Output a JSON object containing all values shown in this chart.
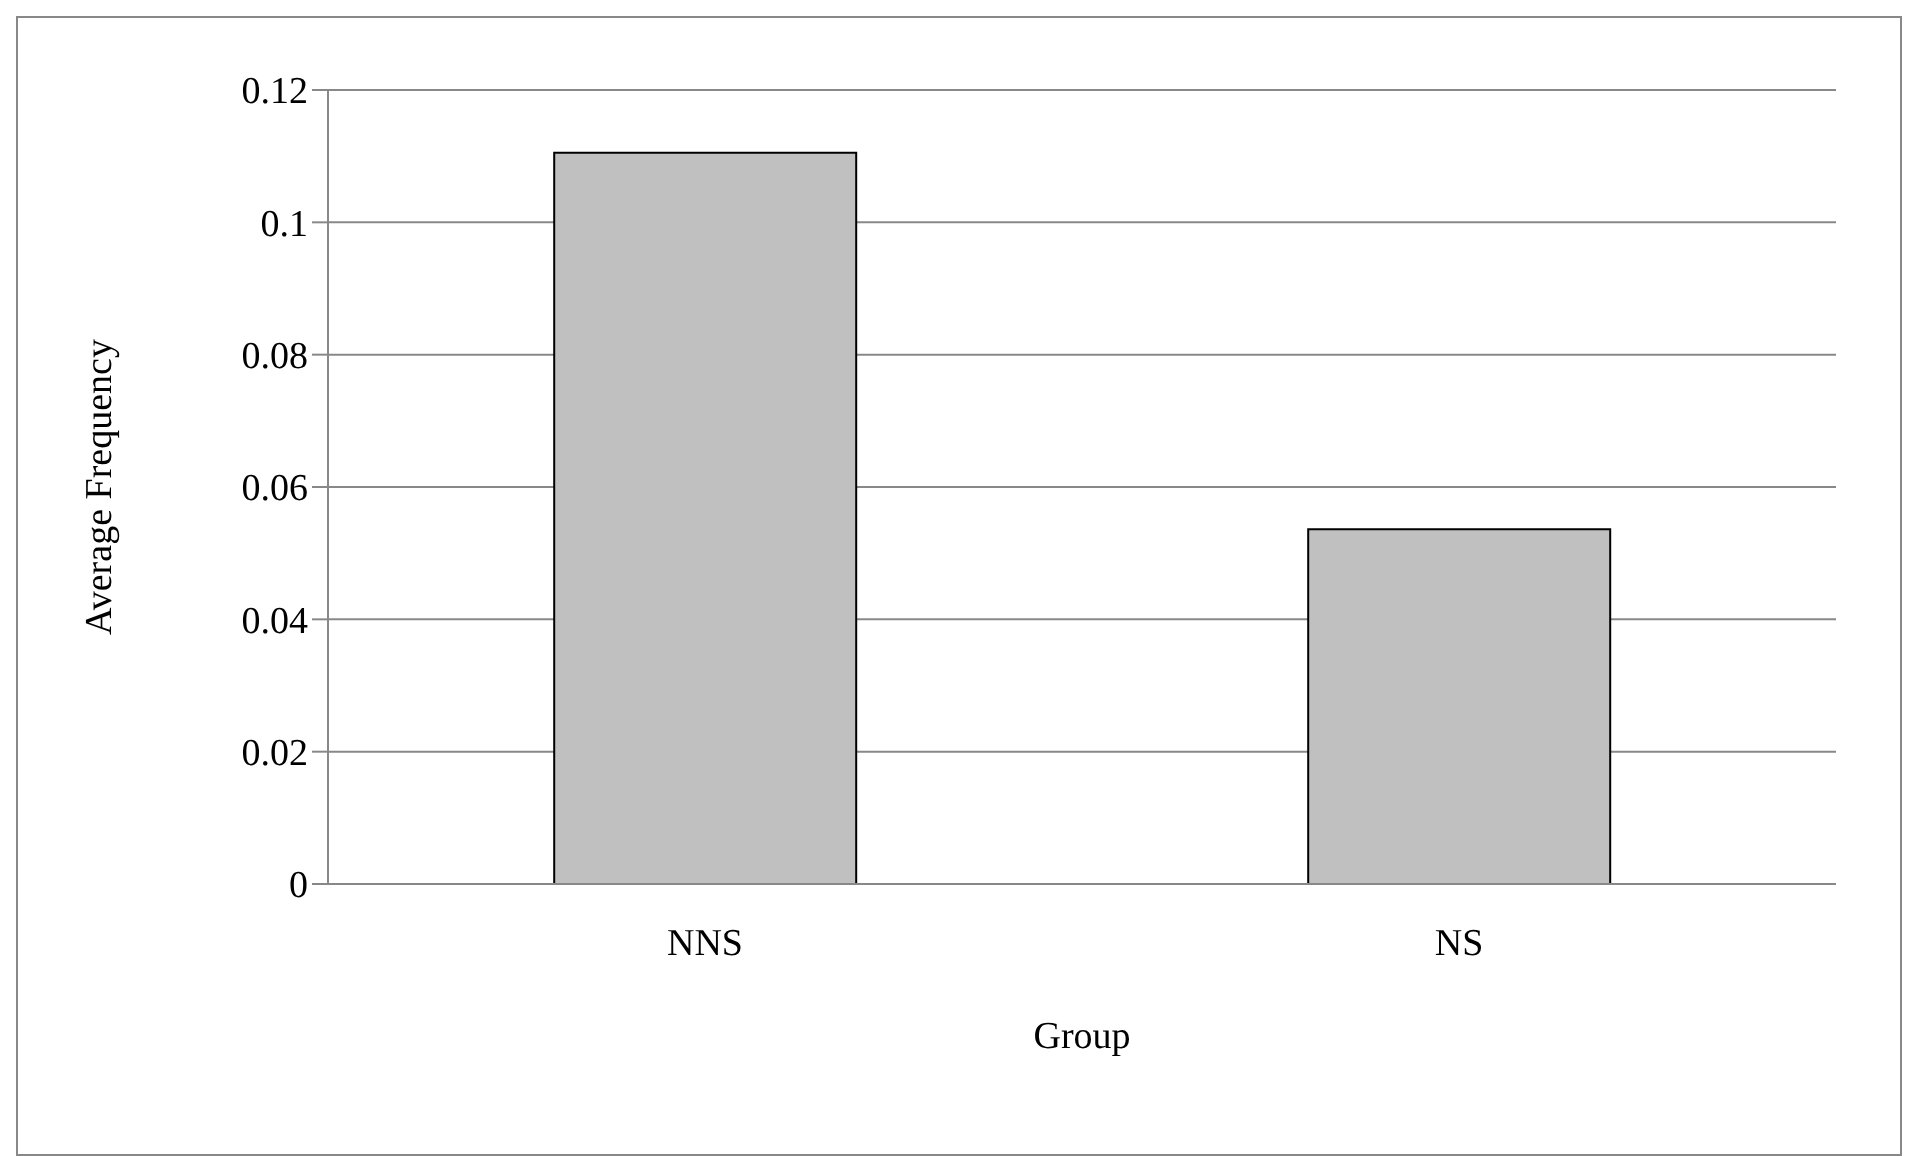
{
  "chart_data": {
    "type": "bar",
    "xlabel": "Group",
    "ylabel": "Average Frequency",
    "categories": [
      "NNS",
      "NS"
    ],
    "values": [
      0.1105,
      0.0536
    ],
    "color": "#c0c0c0",
    "ylim": [
      0,
      0.12
    ],
    "yticks": [
      0,
      0.02,
      0.04,
      0.06,
      0.08,
      0.1,
      0.12
    ],
    "grid": "y",
    "legend": false
  }
}
